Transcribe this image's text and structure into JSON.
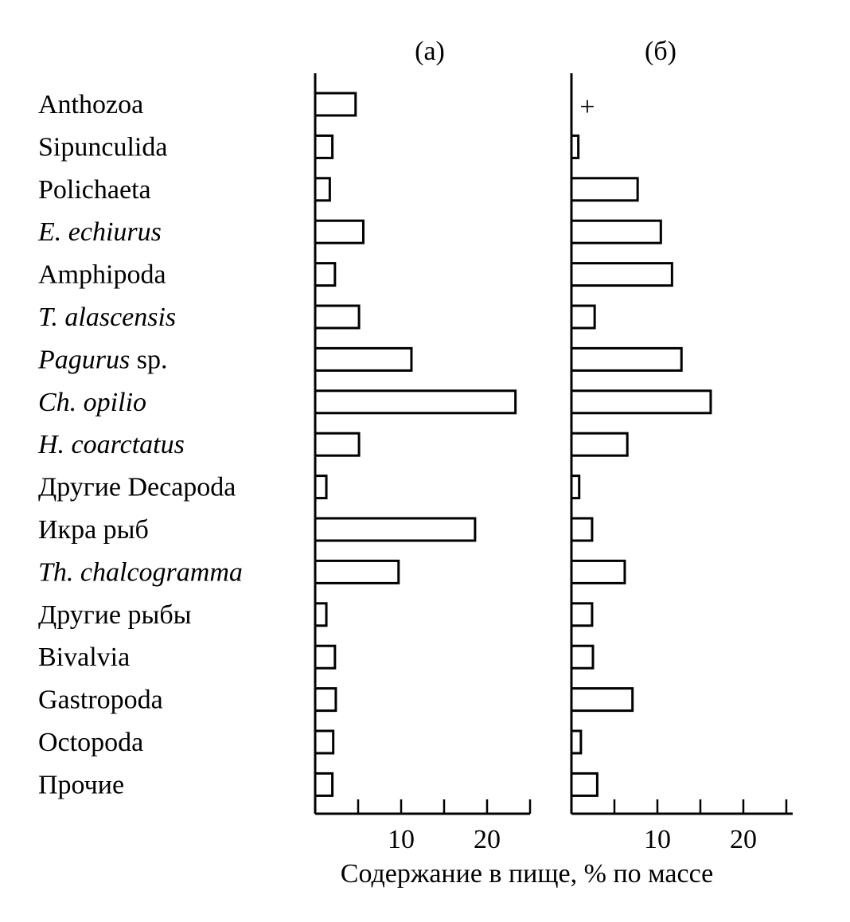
{
  "chart_data": {
    "type": "bar",
    "orientation": "horizontal",
    "categories": [
      {
        "name": "Anthozoa",
        "italic": false
      },
      {
        "name": "Sipunculida",
        "italic": false
      },
      {
        "name": "Polichaeta",
        "italic": false
      },
      {
        "name": "E. echiurus",
        "italic": true
      },
      {
        "name": "Amphipoda",
        "italic": false
      },
      {
        "name": "T. alascensis",
        "italic": true
      },
      {
        "name": "Pagurus sp.",
        "italic": true
      },
      {
        "name": "Ch. opilio",
        "italic": true
      },
      {
        "name": "H. coarctatus",
        "italic": true
      },
      {
        "name": "Другие Decapoda",
        "italic": false
      },
      {
        "name": "Икра рыб",
        "italic": false
      },
      {
        "name": "Th. chalcogramma",
        "italic": true
      },
      {
        "name": "Другие рыбы",
        "italic": false
      },
      {
        "name": "Bivalvia",
        "italic": false
      },
      {
        "name": "Gastropoda",
        "italic": false
      },
      {
        "name": "Octopoda",
        "italic": false
      },
      {
        "name": "Прочие",
        "italic": false
      }
    ],
    "panels": [
      {
        "title": "(а)",
        "values": [
          4.7,
          2.0,
          1.7,
          5.6,
          2.3,
          5.1,
          11.2,
          23.3,
          5.1,
          1.3,
          18.6,
          9.7,
          1.3,
          2.3,
          2.4,
          2.1,
          2.0
        ],
        "annotations": []
      },
      {
        "title": "(б)",
        "values": [
          0,
          0.8,
          7.7,
          10.4,
          11.7,
          2.7,
          12.8,
          16.2,
          6.5,
          0.9,
          2.4,
          6.2,
          2.4,
          2.5,
          7.1,
          1.1,
          3.0
        ],
        "annotations": [
          {
            "category": "Anthozoa",
            "text": "+"
          }
        ]
      }
    ],
    "xlim": [
      0,
      25
    ],
    "xticks": [
      0,
      5,
      10,
      15,
      20,
      25
    ],
    "xtick_labels": {
      "10": "10",
      "20": "20"
    },
    "xlabel": "Содержание в пище, % по массе"
  }
}
